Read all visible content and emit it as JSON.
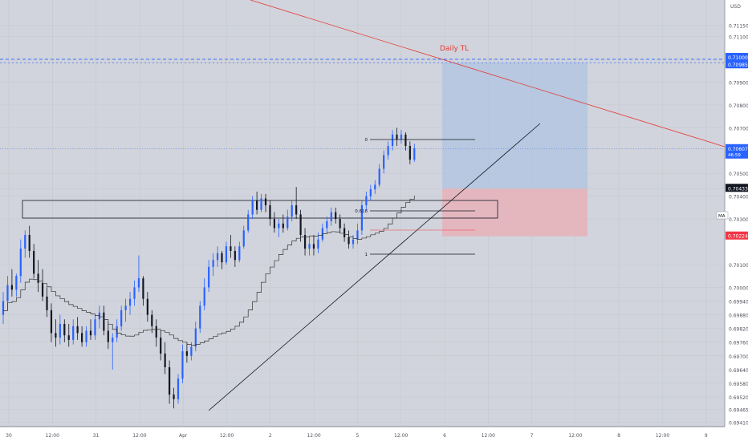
{
  "currency": "USD",
  "symbol_badge": "MA",
  "chart_data": {
    "type": "candlestick",
    "colors": {
      "up": "#2962ff",
      "down": "#131722",
      "trendline_daily": "#e53935",
      "dashed_level": "#2962ff",
      "target_zone": "#b3c6e0",
      "stop_zone": "#e8b2ba",
      "ma": "#333333",
      "current_label": "#2962ff",
      "stop_label": "#f23645"
    },
    "y_range": [
      0.6939,
      0.7126
    ],
    "y_ticks": [
      "0.71150",
      "0.71100",
      "0.71000",
      "0.70985",
      "0.70900",
      "0.70800",
      "0.70700",
      "0.70607",
      "0.70500",
      "0.70433",
      "0.70400",
      "0.70300",
      "0.70100",
      "0.70000",
      "0.69940",
      "0.69880",
      "0.69820",
      "0.69760",
      "0.69700",
      "0.69640",
      "0.69580",
      "0.69520",
      "0.69465",
      "0.69410"
    ],
    "price_labels": {
      "level_top": "0.71000",
      "level_bottom": "0.70985",
      "current_price": "0.70607",
      "current_time": "46:59",
      "entry": "0.70433",
      "stop": "0.70224"
    },
    "x_ticks": [
      "30",
      "12:00",
      "31",
      "12:00",
      "Apr",
      "12:00",
      "2",
      "12:00",
      "5",
      "12:00",
      "6",
      "12:00",
      "7",
      "12:00",
      "8",
      "12:00",
      "9"
    ],
    "annotations": {
      "trendline_label": "Daily TL",
      "fib_0": "0",
      "fib_618": "0.618",
      "fib_1": "1"
    },
    "candles": [
      {
        "o": 0.6988,
        "h": 0.6998,
        "l": 0.6984,
        "c": 0.6994
      },
      {
        "o": 0.6994,
        "h": 0.7005,
        "l": 0.699,
        "c": 0.7001
      },
      {
        "o": 0.7001,
        "h": 0.7008,
        "l": 0.6996,
        "c": 0.6999
      },
      {
        "o": 0.6999,
        "h": 0.7006,
        "l": 0.6996,
        "c": 0.7005
      },
      {
        "o": 0.7005,
        "h": 0.7021,
        "l": 0.7002,
        "c": 0.7017
      },
      {
        "o": 0.7017,
        "h": 0.7025,
        "l": 0.7013,
        "c": 0.7023
      },
      {
        "o": 0.7023,
        "h": 0.7027,
        "l": 0.7013,
        "c": 0.7016
      },
      {
        "o": 0.7016,
        "h": 0.7019,
        "l": 0.7004,
        "c": 0.7006
      },
      {
        "o": 0.7006,
        "h": 0.7012,
        "l": 0.6998,
        "c": 0.7002
      },
      {
        "o": 0.7002,
        "h": 0.7008,
        "l": 0.6994,
        "c": 0.6996
      },
      {
        "o": 0.6996,
        "h": 0.7,
        "l": 0.6987,
        "c": 0.699
      },
      {
        "o": 0.699,
        "h": 0.6993,
        "l": 0.6976,
        "c": 0.698
      },
      {
        "o": 0.698,
        "h": 0.6986,
        "l": 0.6974,
        "c": 0.6978
      },
      {
        "o": 0.6978,
        "h": 0.6988,
        "l": 0.6975,
        "c": 0.6984
      },
      {
        "o": 0.6984,
        "h": 0.6986,
        "l": 0.6976,
        "c": 0.6979
      },
      {
        "o": 0.6979,
        "h": 0.6984,
        "l": 0.6974,
        "c": 0.6977
      },
      {
        "o": 0.6977,
        "h": 0.6986,
        "l": 0.6975,
        "c": 0.6983
      },
      {
        "o": 0.6983,
        "h": 0.6987,
        "l": 0.6977,
        "c": 0.698
      },
      {
        "o": 0.698,
        "h": 0.6983,
        "l": 0.6974,
        "c": 0.6976
      },
      {
        "o": 0.6976,
        "h": 0.6983,
        "l": 0.6974,
        "c": 0.6981
      },
      {
        "o": 0.6981,
        "h": 0.6986,
        "l": 0.6977,
        "c": 0.6979
      },
      {
        "o": 0.6979,
        "h": 0.6988,
        "l": 0.6977,
        "c": 0.6986
      },
      {
        "o": 0.6986,
        "h": 0.6992,
        "l": 0.6982,
        "c": 0.6989
      },
      {
        "o": 0.6989,
        "h": 0.6992,
        "l": 0.6979,
        "c": 0.6981
      },
      {
        "o": 0.6981,
        "h": 0.6985,
        "l": 0.6973,
        "c": 0.6976
      },
      {
        "o": 0.6976,
        "h": 0.698,
        "l": 0.6964,
        "c": 0.6978
      },
      {
        "o": 0.6978,
        "h": 0.6986,
        "l": 0.6976,
        "c": 0.6983
      },
      {
        "o": 0.6983,
        "h": 0.6992,
        "l": 0.6981,
        "c": 0.699
      },
      {
        "o": 0.699,
        "h": 0.6995,
        "l": 0.6985,
        "c": 0.6992
      },
      {
        "o": 0.6992,
        "h": 0.6998,
        "l": 0.6988,
        "c": 0.6995
      },
      {
        "o": 0.6995,
        "h": 0.7003,
        "l": 0.6992,
        "c": 0.7
      },
      {
        "o": 0.7,
        "h": 0.7014,
        "l": 0.6998,
        "c": 0.7004
      },
      {
        "o": 0.7004,
        "h": 0.7005,
        "l": 0.6992,
        "c": 0.6995
      },
      {
        "o": 0.6995,
        "h": 0.6998,
        "l": 0.6985,
        "c": 0.6988
      },
      {
        "o": 0.6988,
        "h": 0.699,
        "l": 0.698,
        "c": 0.6983
      },
      {
        "o": 0.6983,
        "h": 0.6986,
        "l": 0.6974,
        "c": 0.6978
      },
      {
        "o": 0.6978,
        "h": 0.6981,
        "l": 0.6968,
        "c": 0.6971
      },
      {
        "o": 0.6971,
        "h": 0.6976,
        "l": 0.6962,
        "c": 0.6965
      },
      {
        "o": 0.6965,
        "h": 0.6968,
        "l": 0.6949,
        "c": 0.6953
      },
      {
        "o": 0.6953,
        "h": 0.6956,
        "l": 0.6947,
        "c": 0.6951
      },
      {
        "o": 0.6951,
        "h": 0.6962,
        "l": 0.6949,
        "c": 0.696
      },
      {
        "o": 0.696,
        "h": 0.6975,
        "l": 0.6958,
        "c": 0.6972
      },
      {
        "o": 0.6972,
        "h": 0.6976,
        "l": 0.6967,
        "c": 0.697
      },
      {
        "o": 0.697,
        "h": 0.6976,
        "l": 0.6968,
        "c": 0.6974
      },
      {
        "o": 0.6974,
        "h": 0.6985,
        "l": 0.6972,
        "c": 0.6982
      },
      {
        "o": 0.6982,
        "h": 0.6994,
        "l": 0.698,
        "c": 0.6992
      },
      {
        "o": 0.6992,
        "h": 0.7004,
        "l": 0.699,
        "c": 0.7
      },
      {
        "o": 0.7,
        "h": 0.7012,
        "l": 0.6998,
        "c": 0.7009
      },
      {
        "o": 0.7009,
        "h": 0.7015,
        "l": 0.7005,
        "c": 0.7012
      },
      {
        "o": 0.7012,
        "h": 0.7018,
        "l": 0.7009,
        "c": 0.7015
      },
      {
        "o": 0.7015,
        "h": 0.7016,
        "l": 0.7008,
        "c": 0.7011
      },
      {
        "o": 0.7011,
        "h": 0.702,
        "l": 0.701,
        "c": 0.7018
      },
      {
        "o": 0.7018,
        "h": 0.7023,
        "l": 0.7013,
        "c": 0.7016
      },
      {
        "o": 0.7016,
        "h": 0.7018,
        "l": 0.7009,
        "c": 0.7012
      },
      {
        "o": 0.7012,
        "h": 0.702,
        "l": 0.7011,
        "c": 0.7018
      },
      {
        "o": 0.7018,
        "h": 0.7027,
        "l": 0.7017,
        "c": 0.7025
      },
      {
        "o": 0.7025,
        "h": 0.7034,
        "l": 0.7024,
        "c": 0.7032
      },
      {
        "o": 0.7032,
        "h": 0.704,
        "l": 0.703,
        "c": 0.7038
      },
      {
        "o": 0.7038,
        "h": 0.7042,
        "l": 0.7032,
        "c": 0.7034
      },
      {
        "o": 0.7034,
        "h": 0.7041,
        "l": 0.7033,
        "c": 0.7039
      },
      {
        "o": 0.7039,
        "h": 0.7041,
        "l": 0.7033,
        "c": 0.7036
      },
      {
        "o": 0.7036,
        "h": 0.7038,
        "l": 0.7027,
        "c": 0.703
      },
      {
        "o": 0.703,
        "h": 0.7033,
        "l": 0.7024,
        "c": 0.7026
      },
      {
        "o": 0.7026,
        "h": 0.703,
        "l": 0.7022,
        "c": 0.7028
      },
      {
        "o": 0.7028,
        "h": 0.7032,
        "l": 0.7024,
        "c": 0.7026
      },
      {
        "o": 0.7026,
        "h": 0.7034,
        "l": 0.7025,
        "c": 0.7031
      },
      {
        "o": 0.7031,
        "h": 0.7038,
        "l": 0.7029,
        "c": 0.7036
      },
      {
        "o": 0.7036,
        "h": 0.7044,
        "l": 0.703,
        "c": 0.7032
      },
      {
        "o": 0.7032,
        "h": 0.7034,
        "l": 0.702,
        "c": 0.7023
      },
      {
        "o": 0.7023,
        "h": 0.7026,
        "l": 0.7014,
        "c": 0.7017
      },
      {
        "o": 0.7017,
        "h": 0.7022,
        "l": 0.7014,
        "c": 0.7019
      },
      {
        "o": 0.7019,
        "h": 0.7023,
        "l": 0.7014,
        "c": 0.7017
      },
      {
        "o": 0.7017,
        "h": 0.7024,
        "l": 0.7015,
        "c": 0.7021
      },
      {
        "o": 0.7021,
        "h": 0.7028,
        "l": 0.702,
        "c": 0.7026
      },
      {
        "o": 0.7026,
        "h": 0.7031,
        "l": 0.7024,
        "c": 0.7029
      },
      {
        "o": 0.7029,
        "h": 0.7035,
        "l": 0.7027,
        "c": 0.7033
      },
      {
        "o": 0.7033,
        "h": 0.7035,
        "l": 0.7028,
        "c": 0.703
      },
      {
        "o": 0.703,
        "h": 0.7032,
        "l": 0.7024,
        "c": 0.7026
      },
      {
        "o": 0.7026,
        "h": 0.7028,
        "l": 0.702,
        "c": 0.7022
      },
      {
        "o": 0.7022,
        "h": 0.7025,
        "l": 0.7017,
        "c": 0.7019
      },
      {
        "o": 0.7019,
        "h": 0.7023,
        "l": 0.7017,
        "c": 0.7021
      },
      {
        "o": 0.7021,
        "h": 0.7028,
        "l": 0.7019,
        "c": 0.7025
      },
      {
        "o": 0.7025,
        "h": 0.7038,
        "l": 0.7023,
        "c": 0.7036
      },
      {
        "o": 0.7036,
        "h": 0.7042,
        "l": 0.7034,
        "c": 0.704
      },
      {
        "o": 0.704,
        "h": 0.7045,
        "l": 0.7038,
        "c": 0.7043
      },
      {
        "o": 0.7043,
        "h": 0.7047,
        "l": 0.7041,
        "c": 0.7045
      },
      {
        "o": 0.7045,
        "h": 0.7054,
        "l": 0.7044,
        "c": 0.7052
      },
      {
        "o": 0.7052,
        "h": 0.706,
        "l": 0.705,
        "c": 0.7058
      },
      {
        "o": 0.7058,
        "h": 0.7064,
        "l": 0.7056,
        "c": 0.7062
      },
      {
        "o": 0.7062,
        "h": 0.7069,
        "l": 0.706,
        "c": 0.7067
      },
      {
        "o": 0.7067,
        "h": 0.707,
        "l": 0.7062,
        "c": 0.7065
      },
      {
        "o": 0.7065,
        "h": 0.7069,
        "l": 0.7063,
        "c": 0.7067
      },
      {
        "o": 0.7067,
        "h": 0.7068,
        "l": 0.706,
        "c": 0.7062
      },
      {
        "o": 0.7062,
        "h": 0.7064,
        "l": 0.7054,
        "c": 0.7056
      },
      {
        "o": 0.7056,
        "h": 0.7063,
        "l": 0.7055,
        "c": 0.7061
      }
    ]
  }
}
